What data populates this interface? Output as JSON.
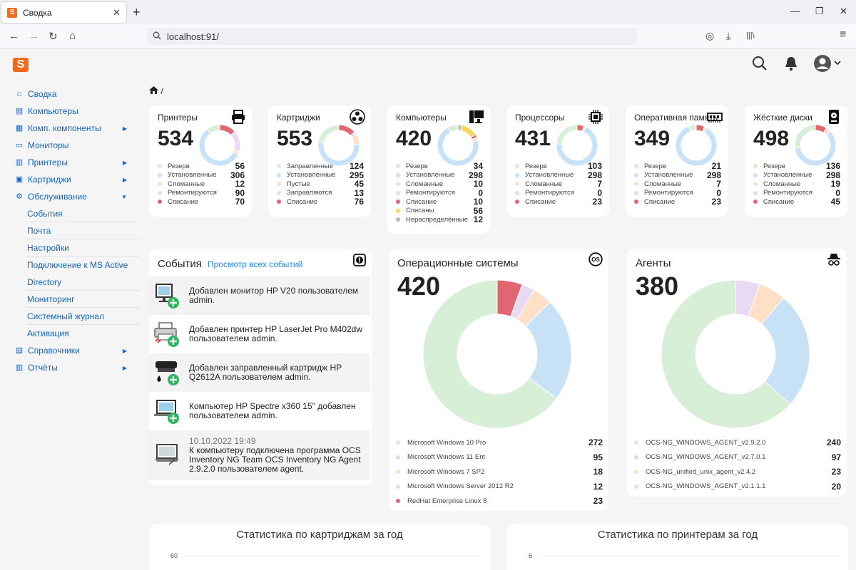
{
  "browser": {
    "tab_title": "Сводка",
    "tab_close": "✕",
    "new_tab": "+",
    "url": "localhost:91/",
    "win_minimize": "—",
    "win_restore": "❐",
    "win_close": "✕",
    "nav_back": "←",
    "nav_forward": "→",
    "nav_reload": "↻",
    "nav_home": "⌂",
    "pocket": "◎",
    "download": "⤓",
    "library": "|||\\",
    "menu": "≡"
  },
  "app": {
    "logo_letter": "S",
    "breadcrumb": "/"
  },
  "sidebar": {
    "items": [
      {
        "label": "Сводка",
        "icon": "home-icon",
        "glyph": "⌂",
        "caret": ""
      },
      {
        "label": "Компьютеры",
        "icon": "computer-icon",
        "glyph": "▤",
        "caret": ""
      },
      {
        "label": "Комп. компоненты",
        "icon": "components-icon",
        "glyph": "▦",
        "caret": "▶"
      },
      {
        "label": "Мониторы",
        "icon": "monitor-icon",
        "glyph": "▭",
        "caret": ""
      },
      {
        "label": "Принтеры",
        "icon": "printer-icon",
        "glyph": "▥",
        "caret": "▶"
      },
      {
        "label": "Картриджи",
        "icon": "cartridge-icon",
        "glyph": "▣",
        "caret": "▶"
      },
      {
        "label": "Обслуживание",
        "icon": "gears-icon",
        "glyph": "⚙",
        "caret": "▼"
      }
    ],
    "subitems": [
      "События",
      "Почта",
      "Настройки",
      "Подключение к MS Active",
      "Directory",
      "Мониторинг",
      "Системный журнал",
      "Активация"
    ],
    "bottom_items": [
      {
        "label": "Справочники",
        "icon": "book-icon",
        "glyph": "▤",
        "caret": "▶"
      },
      {
        "label": "Отчёты",
        "icon": "chart-icon",
        "glyph": "▥",
        "caret": "▶"
      }
    ]
  },
  "stat_cards": [
    {
      "title": "Принтеры",
      "total": "534",
      "icon": "printer-icon",
      "legend": [
        {
          "label": "Резерв",
          "value": "56",
          "color": "#d6efd6"
        },
        {
          "label": "Установленные",
          "value": "306",
          "color": "#c7e1f7"
        },
        {
          "label": "Сломанные",
          "value": "12",
          "color": "#fde0c6"
        },
        {
          "label": "Ремонтируются",
          "value": "90",
          "color": "#e9d9f3"
        },
        {
          "label": "Списание",
          "value": "70",
          "color": "#e06672"
        }
      ]
    },
    {
      "title": "Картриджи",
      "total": "553",
      "icon": "biohazard-icon",
      "legend": [
        {
          "label": "Заправленные",
          "value": "124",
          "color": "#d6efd6"
        },
        {
          "label": "Установленные",
          "value": "295",
          "color": "#c7e1f7"
        },
        {
          "label": "Пустые",
          "value": "45",
          "color": "#fde0c6"
        },
        {
          "label": "Заправляются",
          "value": "13",
          "color": "#e9d9f3"
        },
        {
          "label": "Списание",
          "value": "76",
          "color": "#e06672"
        }
      ]
    },
    {
      "title": "Компьютеры",
      "total": "420",
      "icon": "desktop-icon",
      "legend": [
        {
          "label": "Резерв",
          "value": "34",
          "color": "#d6efd6"
        },
        {
          "label": "Установленные",
          "value": "298",
          "color": "#c7e1f7"
        },
        {
          "label": "Сломанные",
          "value": "10",
          "color": "#fde0c6"
        },
        {
          "label": "Ремонтируются",
          "value": "0",
          "color": "#e9d9f3"
        },
        {
          "label": "Списание",
          "value": "10",
          "color": "#e06672"
        },
        {
          "label": "Списаны",
          "value": "56",
          "color": "#f6d75d"
        },
        {
          "label": "Нераспределённые",
          "value": "12",
          "color": "#b8b8b8"
        }
      ]
    },
    {
      "title": "Процессоры",
      "total": "431",
      "icon": "cpu-icon",
      "legend": [
        {
          "label": "Резерв",
          "value": "103",
          "color": "#d6efd6"
        },
        {
          "label": "Установленные",
          "value": "298",
          "color": "#c7e1f7"
        },
        {
          "label": "Сломанные",
          "value": "7",
          "color": "#fde0c6"
        },
        {
          "label": "Ремонтируются",
          "value": "0",
          "color": "#e9d9f3"
        },
        {
          "label": "Списание",
          "value": "23",
          "color": "#e06672"
        }
      ]
    },
    {
      "title": "Оперативная память",
      "total": "349",
      "icon": "ram-icon",
      "legend": [
        {
          "label": "Резерв",
          "value": "21",
          "color": "#d6efd6"
        },
        {
          "label": "Установленные",
          "value": "298",
          "color": "#c7e1f7"
        },
        {
          "label": "Сломанные",
          "value": "7",
          "color": "#fde0c6"
        },
        {
          "label": "Ремонтируются",
          "value": "0",
          "color": "#e9d9f3"
        },
        {
          "label": "Списание",
          "value": "23",
          "color": "#e06672"
        }
      ]
    },
    {
      "title": "Жёсткие диски",
      "total": "498",
      "icon": "hdd-icon",
      "legend": [
        {
          "label": "Резерв",
          "value": "136",
          "color": "#d6efd6"
        },
        {
          "label": "Установленные",
          "value": "298",
          "color": "#c7e1f7"
        },
        {
          "label": "Сломанные",
          "value": "19",
          "color": "#fde0c6"
        },
        {
          "label": "Ремонтируются",
          "value": "0",
          "color": "#e9d9f3"
        },
        {
          "label": "Списание",
          "value": "45",
          "color": "#e06672"
        }
      ]
    }
  ],
  "events": {
    "title": "События",
    "link": "Просмотр всех событий",
    "items": [
      {
        "date": "",
        "text": "Добавлен монитор HP V20 пользователем admin.",
        "icon": "monitor-add-icon"
      },
      {
        "date": "",
        "text": "Добавлен принтер HP LaserJet Pro M402dw пользователем admin.",
        "icon": "printer-add-icon"
      },
      {
        "date": "",
        "text": "Добавлен заправленный картридж HP Q2612A пользователем admin.",
        "icon": "cartridge-add-icon"
      },
      {
        "date": "",
        "text": "Компьютер HP Spectre x360 15\" добавлен пользователем admin.",
        "icon": "laptop-add-icon"
      },
      {
        "date": "10.10.2022 19:49",
        "text": "К компьютеру подключена программа OCS Inventory NG Team OCS Inventory NG Agent 2.9.2.0 пользователем agent.",
        "icon": "laptop-connect-icon"
      }
    ]
  },
  "os_card": {
    "title": "Операционные системы",
    "total": "420",
    "icon": "os-icon",
    "legend": [
      {
        "label": "Microsoft Windows 10 Pro",
        "value": "272",
        "color": "#d6efd6"
      },
      {
        "label": "Microsoft Windows 11 Ent",
        "value": "95",
        "color": "#c7e1f7"
      },
      {
        "label": "Microsoft Windows 7 SP2",
        "value": "18",
        "color": "#fde0c6"
      },
      {
        "label": "Microsoft Windows Server 2012 R2",
        "value": "12",
        "color": "#e9d9f3"
      },
      {
        "label": "RedHat Enterprise Linux 8",
        "value": "23",
        "color": "#e06672"
      }
    ]
  },
  "agents_card": {
    "title": "Агенты",
    "total": "380",
    "icon": "spy-icon",
    "legend": [
      {
        "label": "OCS-NG_WINDOWS_AGENT_v2.9.2.0",
        "value": "240",
        "color": "#d6efd6"
      },
      {
        "label": "OCS-NG_WINDOWS_AGENT_v2.7.0.1",
        "value": "97",
        "color": "#c7e1f7"
      },
      {
        "label": "OCS-NG_unified_unix_agent_v2.4.2",
        "value": "23",
        "color": "#fde0c6"
      },
      {
        "label": "OCS-NG_WINDOWS_AGENT_v2.1.1.1",
        "value": "20",
        "color": "#e9d9f3"
      }
    ]
  },
  "stats": [
    {
      "title": "Статистика по картриджам за год",
      "ytick": "60"
    },
    {
      "title": "Статистика по принтерам за год",
      "ytick": "6"
    }
  ]
}
